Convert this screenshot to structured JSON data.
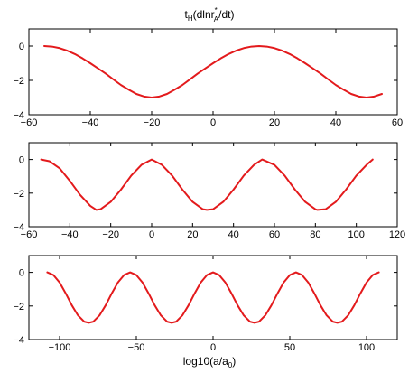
{
  "figure": {
    "title_main": "t",
    "title_sub": "H",
    "title_mid": "(dlnr",
    "title_sup": "*",
    "title_sub2": "A",
    "title_end": "/dt)",
    "xlabel_main": "log10(a/a",
    "xlabel_sub": "0",
    "xlabel_end": ")"
  },
  "chart_data": [
    {
      "type": "line",
      "title": "",
      "xlabel": "",
      "ylabel": "",
      "xlim": [
        -60,
        60
      ],
      "ylim": [
        -4,
        1
      ],
      "xticks": [
        -60,
        -40,
        -20,
        0,
        20,
        40,
        60
      ],
      "xtick_labels": [
        "−60",
        "−40",
        "−20",
        "0",
        "20",
        "40",
        "60"
      ],
      "yticks": [
        -4,
        -2,
        0
      ],
      "ytick_labels": [
        "−4",
        "−2",
        "0"
      ],
      "grid": false,
      "line_color": "#e31a1c",
      "series": [
        {
          "x": [
            -55,
            -52.5,
            -50,
            -47.5,
            -45,
            -42.5,
            -40,
            -37.5,
            -35,
            -32.5,
            -30,
            -27.5,
            -25,
            -22.5,
            -20,
            -17.5,
            -15,
            -12.5,
            -10,
            -7.5,
            -5,
            -2.5,
            0,
            2.5,
            5,
            7.5,
            10,
            12.5,
            15,
            17.5,
            20,
            22.5,
            25,
            27.5,
            30,
            32.5,
            35,
            37.5,
            40,
            42.5,
            45,
            47.5,
            50,
            52.5,
            55
          ],
          "y": [
            0,
            -0.03,
            -0.12,
            -0.27,
            -0.47,
            -0.72,
            -1,
            -1.3,
            -1.6,
            -1.94,
            -2.27,
            -2.54,
            -2.79,
            -2.94,
            -3,
            -2.94,
            -2.79,
            -2.54,
            -2.27,
            -1.94,
            -1.6,
            -1.3,
            -1,
            -0.72,
            -0.47,
            -0.27,
            -0.12,
            -0.03,
            0,
            -0.03,
            -0.12,
            -0.27,
            -0.47,
            -0.72,
            -1,
            -1.3,
            -1.6,
            -1.94,
            -2.27,
            -2.54,
            -2.79,
            -2.94,
            -3,
            -2.94,
            -2.79
          ]
        }
      ]
    },
    {
      "type": "line",
      "title": "",
      "xlabel": "",
      "ylabel": "",
      "xlim": [
        -60,
        120
      ],
      "ylim": [
        -4,
        1
      ],
      "xticks": [
        -60,
        -40,
        -20,
        0,
        20,
        40,
        60,
        80,
        100,
        120
      ],
      "xtick_labels": [
        "−60",
        "−40",
        "−20",
        "0",
        "20",
        "40",
        "60",
        "80",
        "100",
        "120"
      ],
      "yticks": [
        -4,
        -2,
        0
      ],
      "ytick_labels": [
        "−4",
        "−2",
        "0"
      ],
      "grid": false,
      "line_color": "#e31a1c",
      "series": [
        {
          "x": [
            -54,
            -50,
            -45,
            -40,
            -35,
            -30,
            -27,
            -25,
            -20,
            -15,
            -10,
            -5,
            0,
            5,
            10,
            15,
            20,
            25,
            27,
            30,
            35,
            40,
            45,
            50,
            54,
            60,
            65,
            70,
            75,
            80,
            81,
            85,
            90,
            95,
            100,
            105,
            108
          ],
          "y": [
            0,
            -0.1,
            -0.52,
            -1.27,
            -2.1,
            -2.76,
            -3,
            -2.96,
            -2.52,
            -1.79,
            -0.96,
            -0.32,
            0,
            -0.32,
            -0.96,
            -1.79,
            -2.52,
            -2.96,
            -3,
            -2.96,
            -2.52,
            -1.79,
            -0.96,
            -0.32,
            0,
            -0.32,
            -0.96,
            -1.79,
            -2.52,
            -2.96,
            -3,
            -2.96,
            -2.52,
            -1.79,
            -0.96,
            -0.32,
            0
          ]
        }
      ]
    },
    {
      "type": "line",
      "title": "",
      "xlabel": "log10(a/a0)",
      "ylabel": "",
      "xlim": [
        -120,
        120
      ],
      "ylim": [
        -4,
        1
      ],
      "xticks": [
        -100,
        -50,
        0,
        50,
        100
      ],
      "xtick_labels": [
        "−100",
        "−50",
        "0",
        "50",
        "100"
      ],
      "yticks": [
        -4,
        -2,
        0
      ],
      "ytick_labels": [
        "−4",
        "−2",
        "0"
      ],
      "grid": false,
      "line_color": "#e31a1c",
      "series": [
        {
          "x": [
            -108,
            -104,
            -100,
            -96,
            -92,
            -88,
            -84,
            -81,
            -78,
            -74,
            -70,
            -66,
            -62,
            -58,
            -54,
            -50,
            -46,
            -42,
            -38,
            -34,
            -30,
            -27,
            -24,
            -20,
            -16,
            -12,
            -8,
            -4,
            0,
            4,
            8,
            12,
            16,
            20,
            24,
            27,
            30,
            34,
            38,
            42,
            46,
            50,
            54,
            58,
            62,
            66,
            70,
            74,
            78,
            81,
            84,
            88,
            92,
            96,
            100,
            104,
            108
          ],
          "y": [
            0,
            -0.16,
            -0.6,
            -1.25,
            -1.96,
            -2.56,
            -2.93,
            -3,
            -2.93,
            -2.56,
            -1.96,
            -1.25,
            -0.6,
            -0.16,
            0,
            -0.16,
            -0.6,
            -1.25,
            -1.96,
            -2.56,
            -2.93,
            -3,
            -2.93,
            -2.56,
            -1.96,
            -1.25,
            -0.6,
            -0.16,
            0,
            -0.16,
            -0.6,
            -1.25,
            -1.96,
            -2.56,
            -2.93,
            -3,
            -2.93,
            -2.56,
            -1.96,
            -1.25,
            -0.6,
            -0.16,
            0,
            -0.16,
            -0.6,
            -1.25,
            -1.96,
            -2.56,
            -2.93,
            -3,
            -2.93,
            -2.56,
            -1.96,
            -1.25,
            -0.6,
            -0.16,
            0
          ]
        }
      ]
    }
  ]
}
